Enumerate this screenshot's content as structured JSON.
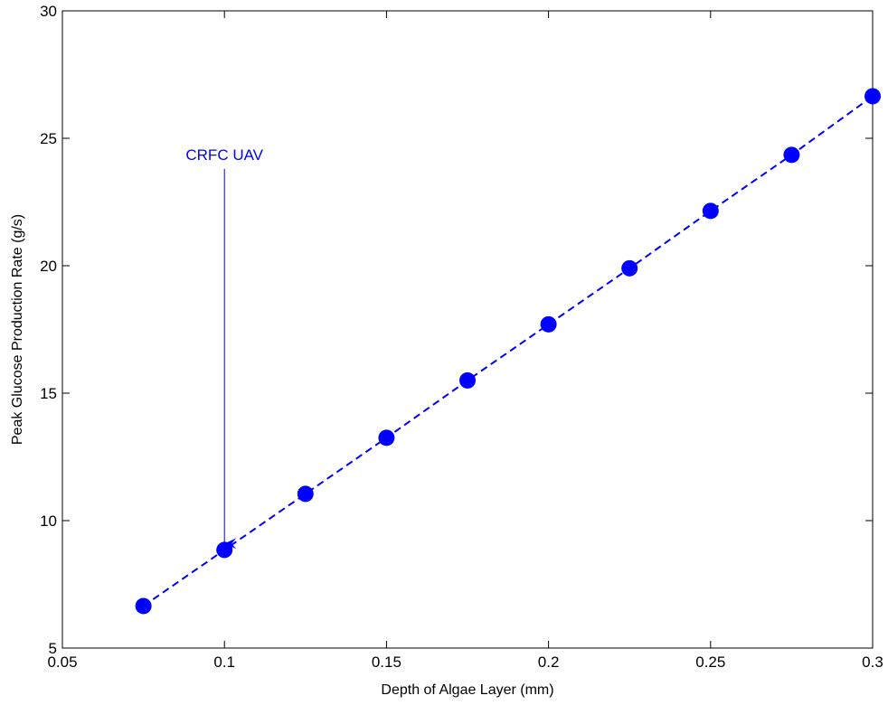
{
  "chart_data": {
    "type": "line",
    "title": "",
    "xlabel": "Depth of Algae Layer (mm)",
    "ylabel": "Peak Glucose Production Rate (g/s)",
    "xlim": [
      0.05,
      0.3
    ],
    "ylim": [
      5,
      30
    ],
    "xticks": [
      0.05,
      0.1,
      0.15,
      0.2,
      0.25,
      0.3
    ],
    "xtick_labels": [
      "0.05",
      "0.1",
      "0.15",
      "0.2",
      "0.25",
      "0.3"
    ],
    "yticks": [
      5,
      10,
      15,
      20,
      25,
      30
    ],
    "ytick_labels": [
      "5",
      "10",
      "15",
      "20",
      "25",
      "30"
    ],
    "grid": false,
    "series": [
      {
        "x": [
          0.075,
          0.1,
          0.125,
          0.15,
          0.175,
          0.2,
          0.225,
          0.25,
          0.275,
          0.3
        ],
        "y": [
          6.65,
          8.85,
          11.05,
          13.25,
          15.5,
          17.7,
          19.9,
          22.15,
          24.35,
          26.65
        ],
        "color": "#0000ff",
        "line_style": "dashed",
        "marker": "circle"
      }
    ],
    "annotations": [
      {
        "text": "CRFC UAV",
        "arrow_start": [
          0.1,
          23.8
        ],
        "arrow_end": [
          0.1,
          9.1
        ],
        "color": "#0000ff"
      }
    ]
  }
}
